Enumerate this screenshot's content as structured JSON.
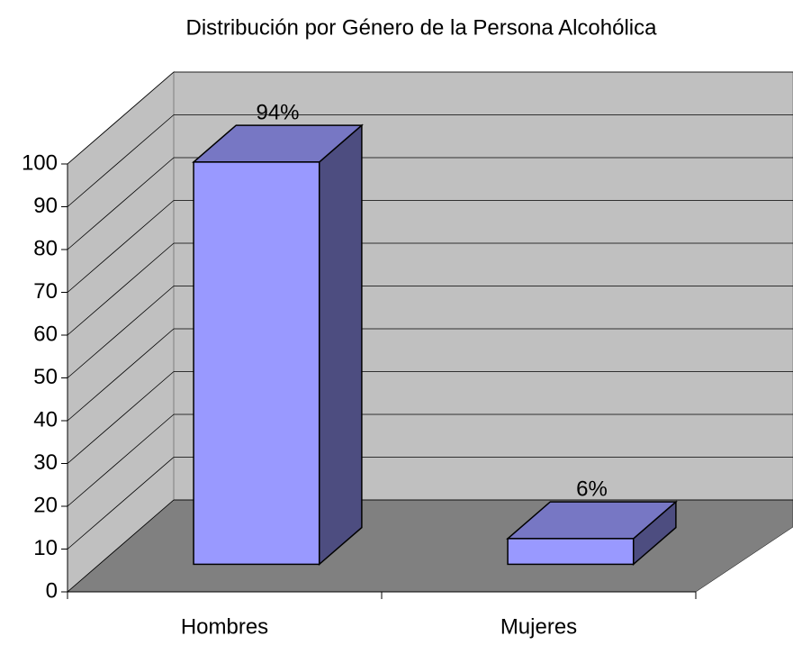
{
  "chart_data": {
    "type": "bar3d",
    "title": "Distribución por Género de la Persona Alcohólica",
    "categories": [
      "Hombres",
      "Mujeres"
    ],
    "values": [
      94,
      6
    ],
    "value_labels": [
      "94%",
      "6%"
    ],
    "color": "#9999ff",
    "ylim": [
      0,
      100
    ],
    "yticks": [
      0,
      10,
      20,
      30,
      40,
      50,
      60,
      70,
      80,
      90,
      100
    ],
    "grid": true
  }
}
